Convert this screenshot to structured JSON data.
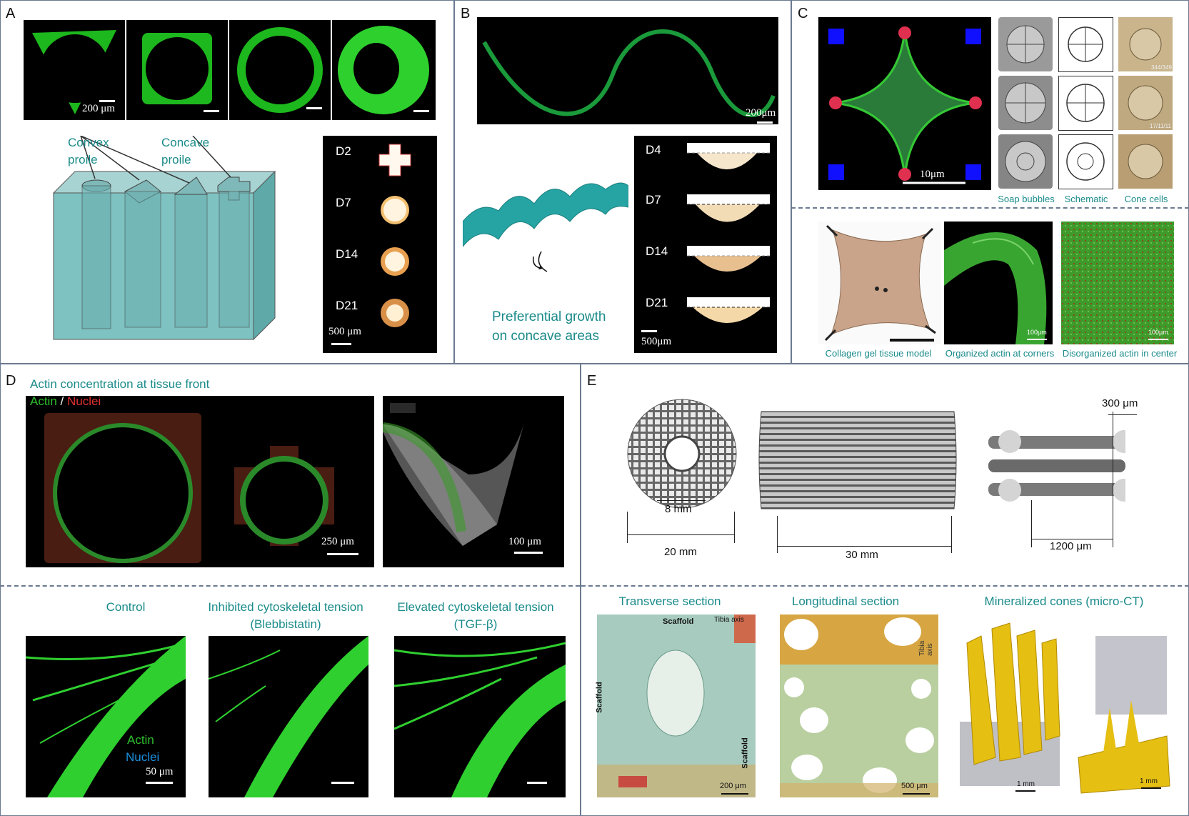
{
  "panels": {
    "A": {
      "label": "A",
      "scalebars": {
        "ring1": "200 μm",
        "cross_series": "500 μm"
      },
      "convex_label": "Convex\nproile",
      "concave_label": "Concave\nproile",
      "days": [
        "D2",
        "D7",
        "D14",
        "D21"
      ]
    },
    "B": {
      "label": "B",
      "scalebars": {
        "wave": "200μm",
        "profiles": "500μm"
      },
      "growth_caption_line1": "Preferential growth",
      "growth_caption_line2": "on concave areas",
      "days": [
        "D4",
        "D7",
        "D14",
        "D21"
      ]
    },
    "C": {
      "label": "C",
      "scalebar_cell": "10μm",
      "grid_captions": [
        "Soap bubbles",
        "Schematic",
        "Cone cells"
      ],
      "bottom_captions": [
        "Collagen gel tissue model",
        "Organized actin at corners",
        "Disorganized actin in center"
      ],
      "bottom_scalebars": [
        "100μm",
        "100μm"
      ],
      "cone_frame_labels": [
        "344/349",
        "17/11/11"
      ]
    },
    "D": {
      "label": "D",
      "title": "Actin concentration at tissue front",
      "legend_actin": "Actin",
      "legend_sep": " / ",
      "legend_nuclei": "Nuclei",
      "scalebars": {
        "rings": "250 μm",
        "corner": "100 μm",
        "bottom": "50 μm"
      },
      "conditions": [
        {
          "line1": "Control",
          "line2": ""
        },
        {
          "line1": "Inhibited cytoskeletal tension",
          "line2": "(Blebbistatin)"
        },
        {
          "line1": "Elevated cytoskeletal tension",
          "line2": "(TGF-β)"
        }
      ],
      "bottom_legend_actin": "Actin",
      "bottom_legend_nuclei": "Nuclei"
    },
    "E": {
      "label": "E",
      "dims": {
        "inner": "8 mm",
        "outer": "20 mm",
        "length": "30 mm",
        "pore": "300 μm",
        "spacing": "1200 μm"
      },
      "sections": [
        "Transverse section",
        "Longitudinal section",
        "Mineralized cones (micro-CT)"
      ],
      "hist_labels": {
        "scaffold_top": "Scaffold",
        "tibia_axis": "Tibia axis",
        "scaffold_left": "Scaffold",
        "scaffold_right": "Scaffold",
        "tibia_axis2": "Tibia axis"
      },
      "hist_scalebars": [
        "200 μm",
        "500 μm",
        "1 mm",
        "1 mm"
      ]
    }
  }
}
